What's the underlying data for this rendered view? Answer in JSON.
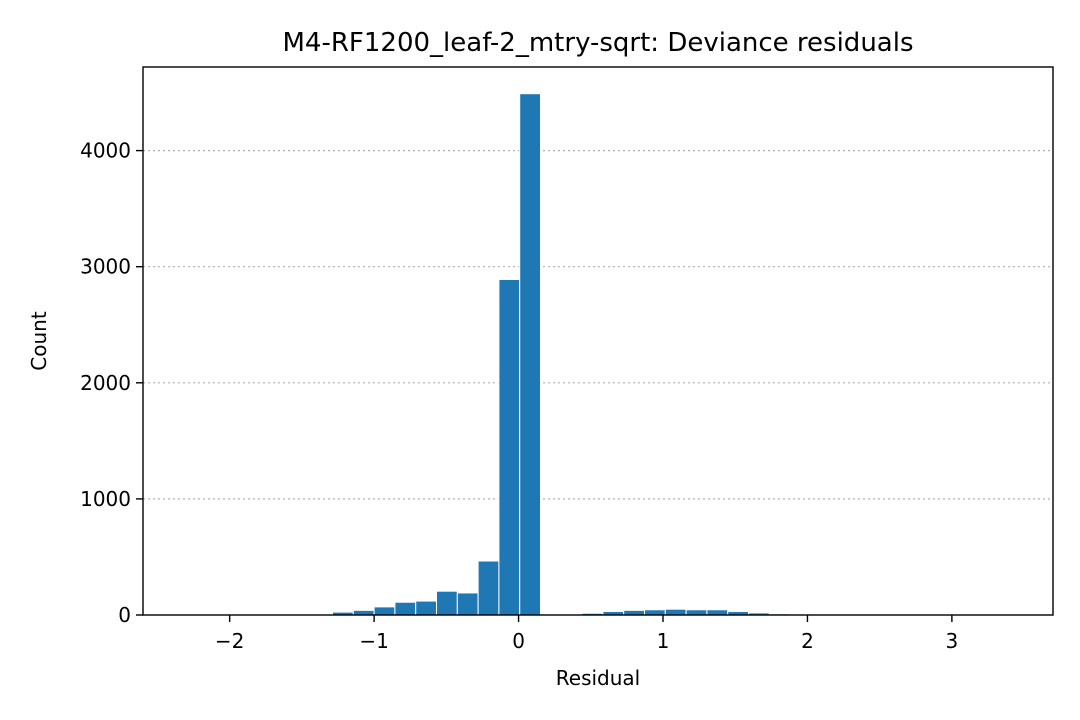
{
  "chart_data": {
    "type": "bar",
    "title": "M4-RF1200_leaf-2_mtry-sqrt: Deviance residuals",
    "xlabel": "Residual",
    "ylabel": "Count",
    "xlim": [
      -2.6,
      3.7
    ],
    "ylim": [
      0,
      4720
    ],
    "xticks": [
      -2,
      -1,
      0,
      1,
      2,
      3
    ],
    "xtick_labels": [
      "−2",
      "−1",
      "0",
      "1",
      "2",
      "3"
    ],
    "yticks": [
      0,
      1000,
      2000,
      3000,
      4000
    ],
    "ytick_labels": [
      "0",
      "1000",
      "2000",
      "3000",
      "4000"
    ],
    "grid": "y-dotted",
    "bar_color": "#1f77b4",
    "bin_width": 0.144,
    "bins": [
      {
        "x0": -2.44,
        "count": 0
      },
      {
        "x0": -2.296,
        "count": 0
      },
      {
        "x0": -2.152,
        "count": 0
      },
      {
        "x0": -2.008,
        "count": 0
      },
      {
        "x0": -1.864,
        "count": 0
      },
      {
        "x0": -1.72,
        "count": 0
      },
      {
        "x0": -1.576,
        "count": 0
      },
      {
        "x0": -1.432,
        "count": 0
      },
      {
        "x0": -1.288,
        "count": 25
      },
      {
        "x0": -1.144,
        "count": 40
      },
      {
        "x0": -1.0,
        "count": 70
      },
      {
        "x0": -0.856,
        "count": 110
      },
      {
        "x0": -0.712,
        "count": 120
      },
      {
        "x0": -0.568,
        "count": 205
      },
      {
        "x0": -0.424,
        "count": 190
      },
      {
        "x0": -0.28,
        "count": 465
      },
      {
        "x0": -0.136,
        "count": 2890
      },
      {
        "x0": 0.008,
        "count": 4490
      },
      {
        "x0": 0.152,
        "count": 0
      },
      {
        "x0": 0.296,
        "count": 0
      },
      {
        "x0": 0.44,
        "count": 15
      },
      {
        "x0": 0.584,
        "count": 30
      },
      {
        "x0": 0.728,
        "count": 40
      },
      {
        "x0": 0.872,
        "count": 45
      },
      {
        "x0": 1.016,
        "count": 50
      },
      {
        "x0": 1.16,
        "count": 45
      },
      {
        "x0": 1.304,
        "count": 45
      },
      {
        "x0": 1.448,
        "count": 30
      },
      {
        "x0": 1.592,
        "count": 18
      },
      {
        "x0": 1.736,
        "count": 10
      },
      {
        "x0": 1.88,
        "count": 5
      },
      {
        "x0": 2.024,
        "count": 3
      },
      {
        "x0": 2.168,
        "count": 2
      },
      {
        "x0": 2.312,
        "count": 1
      },
      {
        "x0": 2.456,
        "count": 1
      },
      {
        "x0": 2.6,
        "count": 0
      },
      {
        "x0": 2.744,
        "count": 0
      },
      {
        "x0": 2.888,
        "count": 0
      },
      {
        "x0": 3.032,
        "count": 0
      },
      {
        "x0": 3.176,
        "count": 0
      },
      {
        "x0": 3.32,
        "count": 0
      }
    ]
  }
}
